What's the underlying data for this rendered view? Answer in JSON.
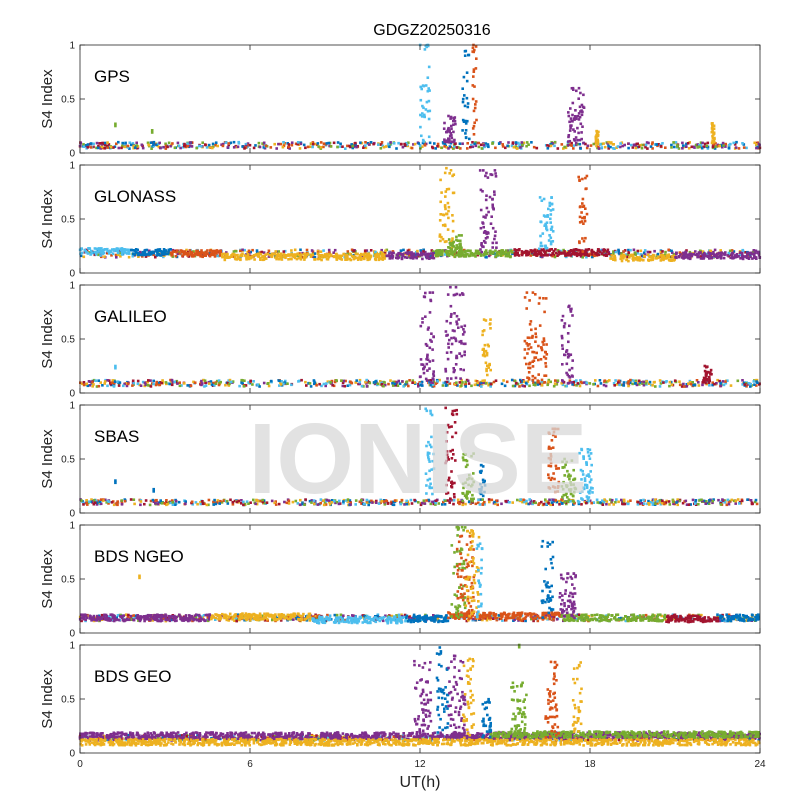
{
  "figure_title": "GDGZ20250316",
  "x_label": "UT(h)",
  "watermark": "IONISE",
  "chart_data": {
    "type": "scatter",
    "xlim": [
      0,
      24
    ],
    "x_ticks": [
      "0",
      "6",
      "12",
      "18",
      "24"
    ],
    "ylabel": "S4 Index",
    "y_ticks": [
      "0",
      "0.5",
      "1"
    ],
    "ylim": [
      0,
      1
    ],
    "grid": false,
    "legend": false,
    "palette": [
      "#0072BD",
      "#D95319",
      "#EDB120",
      "#7E2F8E",
      "#77AC30",
      "#4DBEEE",
      "#A2142F"
    ],
    "panels": [
      {
        "name": "GPS",
        "baseline": 0.07,
        "spread": 0.03,
        "baseline_segments": [],
        "bursts": [
          {
            "x_range": [
              12.0,
              12.35
            ],
            "peak": 1.0,
            "color": "#4DBEEE"
          },
          {
            "x_range": [
              12.85,
              13.25
            ],
            "peak": 0.35,
            "color": "#7E2F8E"
          },
          {
            "x_range": [
              13.5,
              13.75
            ],
            "peak": 0.95,
            "color": "#0072BD"
          },
          {
            "x_range": [
              13.85,
              14.0
            ],
            "peak": 1.0,
            "color": "#D95319"
          },
          {
            "x_range": [
              17.2,
              17.8
            ],
            "peak": 0.6,
            "color": "#7E2F8E"
          },
          {
            "x_range": [
              18.2,
              18.3
            ],
            "peak": 0.22,
            "color": "#EDB120"
          },
          {
            "x_range": [
              22.3,
              22.4
            ],
            "peak": 0.3,
            "color": "#EDB120"
          }
        ],
        "isolated_points": [
          {
            "x": 1.25,
            "y": 0.27,
            "color": "#77AC30"
          },
          {
            "x": 2.55,
            "y": 0.21,
            "color": "#77AC30"
          }
        ]
      },
      {
        "name": "GLONASS",
        "baseline": 0.18,
        "spread": 0.035,
        "baseline_segments": [
          {
            "x_range": [
              0,
              1.8
            ],
            "y": 0.2,
            "color": "#4DBEEE"
          },
          {
            "x_range": [
              1.8,
              3.2
            ],
            "y": 0.19,
            "color": "#0072BD"
          },
          {
            "x_range": [
              3.2,
              5.0
            ],
            "y": 0.18,
            "color": "#D95319"
          },
          {
            "x_range": [
              5.0,
              10.8
            ],
            "y": 0.15,
            "color": "#EDB120"
          },
          {
            "x_range": [
              10.8,
              12.5
            ],
            "y": 0.16,
            "color": "#7E2F8E"
          },
          {
            "x_range": [
              12.5,
              15.3
            ],
            "y": 0.18,
            "color": "#77AC30"
          },
          {
            "x_range": [
              15.3,
              18.7
            ],
            "y": 0.19,
            "color": "#A2142F"
          },
          {
            "x_range": [
              18.7,
              21.0
            ],
            "y": 0.14,
            "color": "#EDB120"
          },
          {
            "x_range": [
              21.0,
              24.0
            ],
            "y": 0.16,
            "color": "#7E2F8E"
          }
        ],
        "bursts": [
          {
            "x_range": [
              12.7,
              13.2
            ],
            "peak": 0.97,
            "color": "#EDB120"
          },
          {
            "x_range": [
              13.0,
              13.5
            ],
            "peak": 0.35,
            "color": "#77AC30"
          },
          {
            "x_range": [
              14.1,
              14.7
            ],
            "peak": 0.95,
            "color": "#7E2F8E"
          },
          {
            "x_range": [
              16.2,
              16.7
            ],
            "peak": 0.7,
            "color": "#4DBEEE"
          },
          {
            "x_range": [
              17.6,
              17.9
            ],
            "peak": 0.9,
            "color": "#D95319"
          }
        ],
        "isolated_points": []
      },
      {
        "name": "GALILEO",
        "baseline": 0.09,
        "spread": 0.03,
        "baseline_segments": [],
        "bursts": [
          {
            "x_range": [
              12.0,
              12.5
            ],
            "peak": 0.93,
            "color": "#7E2F8E"
          },
          {
            "x_range": [
              12.9,
              13.6
            ],
            "peak": 0.98,
            "color": "#7E2F8E"
          },
          {
            "x_range": [
              14.2,
              14.5
            ],
            "peak": 0.7,
            "color": "#EDB120"
          },
          {
            "x_range": [
              15.7,
              16.5
            ],
            "peak": 0.93,
            "color": "#D95319"
          },
          {
            "x_range": [
              17.0,
              17.4
            ],
            "peak": 0.82,
            "color": "#7E2F8E"
          },
          {
            "x_range": [
              22.0,
              22.3
            ],
            "peak": 0.25,
            "color": "#A2142F"
          }
        ],
        "isolated_points": [
          {
            "x": 1.25,
            "y": 0.25,
            "color": "#4DBEEE"
          }
        ]
      },
      {
        "name": "SBAS",
        "baseline": 0.1,
        "spread": 0.025,
        "baseline_segments": [],
        "bursts": [
          {
            "x_range": [
              12.2,
              12.5
            ],
            "peak": 0.97,
            "color": "#4DBEEE"
          },
          {
            "x_range": [
              12.9,
              13.3
            ],
            "peak": 0.98,
            "color": "#A2142F"
          },
          {
            "x_range": [
              13.5,
              13.9
            ],
            "peak": 0.55,
            "color": "#77AC30"
          },
          {
            "x_range": [
              14.1,
              14.3
            ],
            "peak": 0.45,
            "color": "#0072BD"
          },
          {
            "x_range": [
              16.5,
              16.9
            ],
            "peak": 0.78,
            "color": "#D95319"
          },
          {
            "x_range": [
              17.0,
              17.5
            ],
            "peak": 0.5,
            "color": "#77AC30"
          },
          {
            "x_range": [
              17.6,
              18.1
            ],
            "peak": 0.6,
            "color": "#4DBEEE"
          }
        ],
        "isolated_points": [
          {
            "x": 1.25,
            "y": 0.3,
            "color": "#0072BD"
          },
          {
            "x": 2.6,
            "y": 0.22,
            "color": "#0072BD"
          }
        ]
      },
      {
        "name": "BDS NGEO",
        "baseline": 0.14,
        "spread": 0.03,
        "baseline_segments": [
          {
            "x_range": [
              0,
              4.6
            ],
            "y": 0.14,
            "color": "#7E2F8E"
          },
          {
            "x_range": [
              4.6,
              8.2
            ],
            "y": 0.15,
            "color": "#EDB120"
          },
          {
            "x_range": [
              8.2,
              11.5
            ],
            "y": 0.12,
            "color": "#4DBEEE"
          },
          {
            "x_range": [
              11.5,
              13.0
            ],
            "y": 0.13,
            "color": "#0072BD"
          },
          {
            "x_range": [
              13.0,
              17.0
            ],
            "y": 0.16,
            "color": "#D95319"
          },
          {
            "x_range": [
              17.0,
              20.7
            ],
            "y": 0.14,
            "color": "#77AC30"
          },
          {
            "x_range": [
              20.7,
              22.6
            ],
            "y": 0.13,
            "color": "#A2142F"
          },
          {
            "x_range": [
              22.6,
              24.0
            ],
            "y": 0.14,
            "color": "#0072BD"
          }
        ],
        "bursts": [
          {
            "x_range": [
              13.1,
              13.6
            ],
            "peak": 0.98,
            "color": "#77AC30"
          },
          {
            "x_range": [
              13.3,
              13.9
            ],
            "peak": 0.9,
            "color": "#D95319"
          },
          {
            "x_range": [
              13.6,
              14.1
            ],
            "peak": 0.95,
            "color": "#EDB120"
          },
          {
            "x_range": [
              14.0,
              14.2
            ],
            "peak": 0.85,
            "color": "#4DBEEE"
          },
          {
            "x_range": [
              16.3,
              16.7
            ],
            "peak": 0.85,
            "color": "#0072BD"
          },
          {
            "x_range": [
              16.9,
              17.5
            ],
            "peak": 0.55,
            "color": "#7E2F8E"
          }
        ],
        "isolated_points": [
          {
            "x": 2.1,
            "y": 0.53,
            "color": "#EDB120"
          }
        ]
      },
      {
        "name": "BDS GEO",
        "baseline": 0.14,
        "spread": 0.025,
        "baseline_segments": [
          {
            "x_range": [
              0,
              24.0
            ],
            "y": 0.16,
            "color": "#7E2F8E"
          },
          {
            "x_range": [
              0,
              24.0
            ],
            "y": 0.1,
            "color": "#EDB120"
          },
          {
            "x_range": [
              14.5,
              24.0
            ],
            "y": 0.17,
            "color": "#77AC30"
          }
        ],
        "bursts": [
          {
            "x_range": [
              11.8,
              12.4
            ],
            "peak": 0.85,
            "color": "#7E2F8E"
          },
          {
            "x_range": [
              12.6,
              13.0
            ],
            "peak": 0.98,
            "color": "#0072BD"
          },
          {
            "x_range": [
              13.0,
              13.6
            ],
            "peak": 0.9,
            "color": "#7E2F8E"
          },
          {
            "x_range": [
              13.5,
              13.9
            ],
            "peak": 0.88,
            "color": "#EDB120"
          },
          {
            "x_range": [
              14.2,
              14.5
            ],
            "peak": 0.5,
            "color": "#0072BD"
          },
          {
            "x_range": [
              15.2,
              15.8
            ],
            "peak": 0.65,
            "color": "#77AC30"
          },
          {
            "x_range": [
              16.4,
              16.9
            ],
            "peak": 0.85,
            "color": "#D95319"
          },
          {
            "x_range": [
              17.4,
              17.7
            ],
            "peak": 0.85,
            "color": "#EDB120"
          }
        ],
        "isolated_points": [
          {
            "x": 15.5,
            "y": 1.0,
            "color": "#77AC30"
          }
        ]
      }
    ]
  }
}
